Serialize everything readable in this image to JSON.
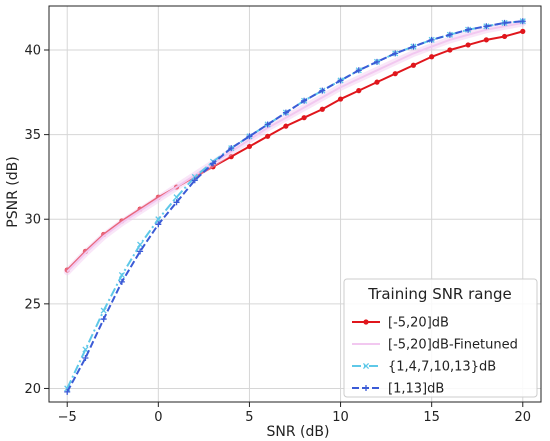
{
  "chart_data": {
    "type": "line",
    "xlabel": "SNR (dB)",
    "ylabel": "PSNR (dB)",
    "xlim": [
      -6,
      21
    ],
    "ylim": [
      19.2,
      42.6
    ],
    "x_ticks": [
      -5,
      0,
      5,
      10,
      15,
      20
    ],
    "y_ticks": [
      20,
      25,
      30,
      35,
      40
    ],
    "grid": true,
    "legend": {
      "title": "Training SNR range",
      "placement": "bottom-right"
    },
    "x": [
      -5,
      -4,
      -3,
      -2,
      -1,
      0,
      1,
      2,
      3,
      4,
      5,
      6,
      7,
      8,
      9,
      10,
      11,
      12,
      13,
      14,
      15,
      16,
      17,
      18,
      19,
      20
    ],
    "series": [
      {
        "name": "[-5,20]dB",
        "color": "#e0161c",
        "style": "solid",
        "marker": "circle",
        "values": [
          27.0,
          28.1,
          29.1,
          29.9,
          30.6,
          31.3,
          31.9,
          32.5,
          33.1,
          33.7,
          34.3,
          34.9,
          35.5,
          36.0,
          36.5,
          37.1,
          37.6,
          38.1,
          38.6,
          39.1,
          39.6,
          40.0,
          40.3,
          40.6,
          40.8,
          41.1
        ]
      },
      {
        "name": "[-5,20]dB-Finetuned",
        "color": "#f2c8f0",
        "style": "solid",
        "marker": "none",
        "values": [
          26.9,
          28.0,
          29.0,
          29.8,
          30.5,
          31.2,
          31.9,
          32.6,
          33.3,
          34.0,
          34.7,
          35.4,
          36.0,
          36.6,
          37.2,
          37.8,
          38.3,
          38.8,
          39.3,
          39.8,
          40.2,
          40.6,
          40.9,
          41.2,
          41.4,
          41.6
        ]
      },
      {
        "name": "{1,4,7,10,13}dB",
        "color": "#5ec8e8",
        "style": "dashdot",
        "marker": "x",
        "values": [
          20.0,
          22.3,
          24.6,
          26.7,
          28.5,
          30.0,
          31.3,
          32.5,
          33.4,
          34.2,
          34.9,
          35.6,
          36.3,
          37.0,
          37.6,
          38.2,
          38.8,
          39.3,
          39.8,
          40.2,
          40.6,
          40.9,
          41.2,
          41.4,
          41.6,
          41.7
        ]
      },
      {
        "name": "[1,13]dB",
        "color": "#3b5bd6",
        "style": "dashed",
        "marker": "plus",
        "values": [
          19.8,
          21.8,
          24.1,
          26.3,
          28.1,
          29.7,
          31.0,
          32.3,
          33.3,
          34.2,
          34.9,
          35.6,
          36.3,
          37.0,
          37.6,
          38.2,
          38.8,
          39.3,
          39.8,
          40.2,
          40.6,
          40.9,
          41.2,
          41.4,
          41.6,
          41.7
        ]
      }
    ]
  }
}
